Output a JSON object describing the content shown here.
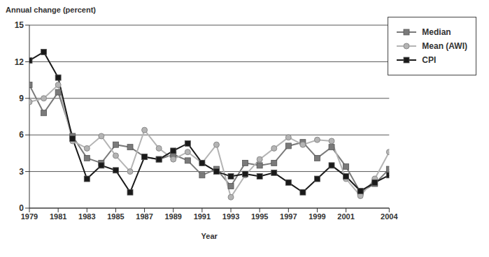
{
  "chart_data": {
    "type": "line",
    "y_label": "Annual change (percent)",
    "x_label": "Year",
    "x": [
      1979,
      1980,
      1981,
      1982,
      1983,
      1984,
      1985,
      1986,
      1987,
      1988,
      1989,
      1990,
      1991,
      1992,
      1993,
      1994,
      1995,
      1996,
      1997,
      1998,
      1999,
      2000,
      2001,
      2002,
      2003,
      2004
    ],
    "series": [
      {
        "name": "Median",
        "color": "#7a7a7a",
        "marker": "square",
        "values": [
          10.1,
          7.8,
          9.5,
          5.9,
          4.1,
          3.7,
          5.2,
          5.0,
          4.2,
          4.0,
          4.4,
          3.9,
          2.7,
          3.2,
          1.8,
          3.7,
          3.5,
          3.7,
          5.1,
          5.4,
          4.1,
          5.0,
          3.4,
          1.3,
          2.0,
          3.2
        ]
      },
      {
        "name": "Mean (AWI)",
        "color": "#b4b4b4",
        "marker": "circle",
        "values": [
          8.7,
          9.0,
          10.1,
          5.5,
          4.9,
          5.9,
          4.3,
          3.0,
          6.4,
          4.9,
          4.0,
          4.6,
          3.7,
          5.2,
          0.9,
          2.7,
          4.0,
          4.9,
          5.8,
          5.2,
          5.6,
          5.5,
          2.4,
          1.0,
          2.4,
          4.6
        ]
      },
      {
        "name": "CPI",
        "color": "#1a1a1a",
        "marker": "square",
        "values": [
          12.1,
          12.8,
          10.7,
          5.7,
          2.4,
          3.5,
          3.1,
          1.3,
          4.2,
          4.0,
          4.7,
          5.3,
          3.7,
          3.0,
          2.6,
          2.8,
          2.6,
          2.9,
          2.1,
          1.3,
          2.4,
          3.5,
          2.6,
          1.4,
          2.1,
          2.7
        ]
      }
    ],
    "xlim": [
      1979,
      2004
    ],
    "xticks": [
      1979,
      1981,
      1983,
      1985,
      1987,
      1989,
      1991,
      1993,
      1995,
      1997,
      1999,
      2001,
      2004
    ],
    "ylim": [
      0,
      15
    ],
    "yticks": [
      0,
      3,
      6,
      9,
      12,
      15
    ],
    "grid": true,
    "legend": "top-right"
  }
}
